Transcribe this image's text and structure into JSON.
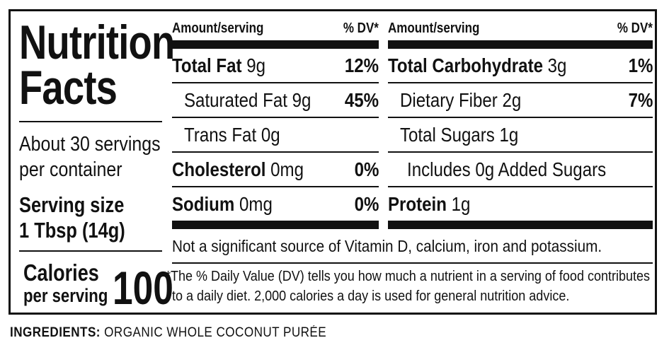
{
  "label": {
    "title_line1": "Nutrition",
    "title_line2": "Facts",
    "servings_line1": "About 30 servings",
    "servings_line2": "per container",
    "serving_size_label": "Serving size",
    "serving_size_value": "1 Tbsp (14g)",
    "calories_label_line1": "Calories",
    "calories_label_line2": "per serving",
    "calories_value": "100"
  },
  "table_left": {
    "header_amount": "Amount/serving",
    "header_dv": "% DV*",
    "rows": [
      {
        "name": "Total Fat",
        "amount": "9g",
        "dv": "12%"
      },
      {
        "name": "Saturated Fat 9g",
        "amount": "",
        "dv": "45%"
      },
      {
        "name": "Trans Fat 0g",
        "amount": "",
        "dv": ""
      },
      {
        "name": "Cholesterol",
        "amount": "0mg",
        "dv": "0%"
      },
      {
        "name": "Sodium",
        "amount": "0mg",
        "dv": "0%"
      }
    ]
  },
  "table_right": {
    "header_amount": "Amount/serving",
    "header_dv": "% DV*",
    "rows": [
      {
        "name": "Total Carbohydrate",
        "amount": "3g",
        "dv": "1%"
      },
      {
        "name": "Dietary Fiber 2g",
        "amount": "",
        "dv": "7%"
      },
      {
        "name": "Total Sugars 1g",
        "amount": "",
        "dv": ""
      },
      {
        "name": "Includes 0g Added Sugars",
        "amount": "",
        "dv": ""
      },
      {
        "name": "Protein",
        "amount": "1g",
        "dv": ""
      }
    ]
  },
  "not_significant": "Not a significant source of Vitamin D, calcium, iron and potassium.",
  "footnote_line1": "*The % Daily Value (DV) tells you how much a nutrient in a serving of food contributes",
  "footnote_line2": "to a daily diet. 2,000 calories a day is used for general nutrition advice.",
  "ingredients_label": "INGREDIENTS:",
  "ingredients_value": "ORGANIC WHOLE COCONUT PURÉE"
}
